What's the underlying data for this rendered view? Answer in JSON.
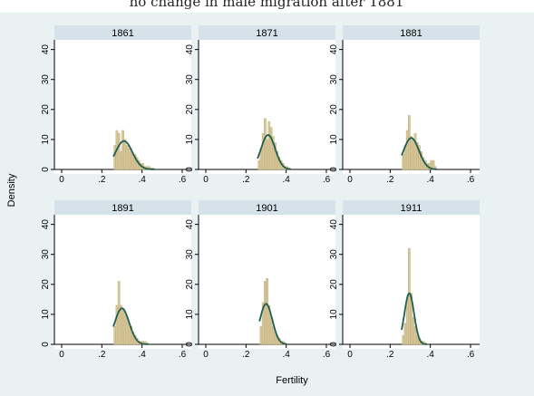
{
  "figure": {
    "title": "no change in male migration after 1881",
    "ylabel": "Density",
    "xlabel": "Fertility"
  },
  "colors": {
    "outer_background": "#eaf1f3",
    "plot_background": "#ffffff",
    "panel_header": "#d6e2ea",
    "bar_fill": "#d8c79a",
    "bar_stroke": "#b9a46c",
    "curve": "#1f5e52"
  },
  "chart_data": {
    "type": "bar",
    "subtype": "histogram with kernel density overlay, small multiples (2x3)",
    "shared_axes": {
      "xlim": [
        0,
        0.6
      ],
      "ylim": [
        0,
        42
      ],
      "x_ticks": [
        0,
        0.2,
        0.4,
        0.6
      ],
      "x_tick_labels": [
        "0",
        ".2",
        ".4",
        ".6"
      ],
      "y_ticks": [
        0,
        10,
        20,
        30,
        40
      ],
      "y_tick_labels": [
        "0",
        "10",
        "20",
        "30",
        "40"
      ],
      "grid": false
    },
    "bin_width": 0.01,
    "panels": [
      {
        "name": "1861",
        "bins_start": [
          0.26,
          0.27,
          0.28,
          0.29,
          0.3,
          0.31,
          0.32,
          0.33,
          0.34,
          0.35,
          0.36,
          0.37,
          0.38,
          0.39,
          0.4,
          0.41,
          0.42,
          0.43,
          0.44,
          0.45
        ],
        "heights": [
          8,
          13,
          12,
          6,
          13,
          10,
          8,
          7,
          6,
          5,
          5,
          4,
          3,
          2,
          2,
          1,
          1,
          1,
          0.5,
          0.5
        ],
        "density_mean": 0.31,
        "density_sd": 0.042,
        "density_peak": 9.5
      },
      {
        "name": "1871",
        "bins_start": [
          0.26,
          0.27,
          0.28,
          0.29,
          0.3,
          0.31,
          0.32,
          0.33,
          0.34,
          0.35,
          0.36,
          0.37,
          0.38,
          0.39,
          0.4,
          0.41
        ],
        "heights": [
          3,
          7,
          12,
          17,
          10,
          16,
          14,
          11,
          9,
          6,
          4,
          3,
          2,
          1,
          1,
          0.5
        ],
        "density_mean": 0.31,
        "density_sd": 0.035,
        "density_peak": 11.5
      },
      {
        "name": "1881",
        "bins_start": [
          0.26,
          0.27,
          0.28,
          0.29,
          0.3,
          0.31,
          0.32,
          0.33,
          0.34,
          0.35,
          0.36,
          0.37,
          0.38,
          0.39,
          0.4,
          0.41,
          0.42
        ],
        "heights": [
          5,
          8,
          13,
          18,
          11,
          10,
          12,
          9,
          8,
          6,
          4,
          3,
          2,
          2,
          3,
          3,
          1
        ],
        "density_mean": 0.305,
        "density_sd": 0.038,
        "density_peak": 10.5
      },
      {
        "name": "1891",
        "bins_start": [
          0.26,
          0.27,
          0.28,
          0.29,
          0.3,
          0.31,
          0.32,
          0.33,
          0.34,
          0.35,
          0.36,
          0.37,
          0.38,
          0.39,
          0.4,
          0.41,
          0.42
        ],
        "heights": [
          6,
          13,
          21,
          13,
          12,
          11,
          9,
          7,
          6,
          4,
          3,
          2,
          1,
          1,
          1,
          1,
          0.5
        ],
        "density_mean": 0.3,
        "density_sd": 0.036,
        "density_peak": 12
      },
      {
        "name": "1901",
        "bins_start": [
          0.27,
          0.28,
          0.29,
          0.3,
          0.31,
          0.32,
          0.33,
          0.34,
          0.35,
          0.36,
          0.37,
          0.38,
          0.39
        ],
        "heights": [
          6,
          14,
          21,
          22,
          13,
          9,
          6,
          4,
          3,
          2,
          1,
          1,
          0.5
        ],
        "density_mean": 0.3,
        "density_sd": 0.031,
        "density_peak": 13.5
      },
      {
        "name": "1911",
        "bins_start": [
          0.26,
          0.27,
          0.28,
          0.29,
          0.3,
          0.31,
          0.32,
          0.33,
          0.34,
          0.35,
          0.36,
          0.37
        ],
        "heights": [
          3,
          7,
          15,
          32,
          17,
          9,
          6,
          3,
          2,
          1,
          1,
          0.5
        ],
        "density_mean": 0.295,
        "density_sd": 0.024,
        "density_peak": 17
      }
    ]
  }
}
